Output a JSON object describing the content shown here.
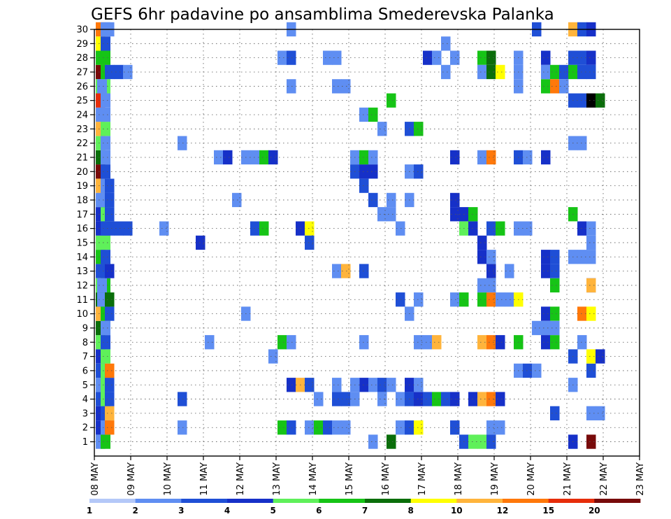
{
  "chart_data": {
    "type": "heatmap",
    "title": "GEFS 6hr padavine po ansamblima Smederevska Palanka",
    "xlabel": "",
    "ylabel": "",
    "x_tick_labels": [
      "08 MAY",
      "09 MAY",
      "10 MAY",
      "11 MAY",
      "12 MAY",
      "13 MAY",
      "14 MAY",
      "15 MAY",
      "16 MAY",
      "17 MAY",
      "18 MAY",
      "19 MAY",
      "20 MAY",
      "21 MAY",
      "22 MAY",
      "23 MAY"
    ],
    "y_tick_labels": [
      "1",
      "2",
      "3",
      "4",
      "5",
      "6",
      "7",
      "8",
      "9",
      "10",
      "11",
      "12",
      "13",
      "14",
      "15",
      "16",
      "17",
      "18",
      "19",
      "20",
      "21",
      "22",
      "23",
      "24",
      "25",
      "26",
      "27",
      "28",
      "29",
      "30"
    ],
    "xlim": [
      0,
      60
    ],
    "ylim": [
      0,
      30
    ],
    "x_unit": "6-hour steps from 08 MAY 00Z",
    "y_unit": "ensemble member",
    "grid": true,
    "legend_position": "bottom",
    "colorbar": {
      "tick_labels": [
        "1",
        "2",
        "3",
        "4",
        "5",
        "6",
        "7",
        "8",
        "10",
        "12",
        "15",
        "20"
      ],
      "colors": [
        "#b4c8f8",
        "#5f8ef2",
        "#1f4fd6",
        "#1630c8",
        "#5ff05a",
        "#16c416",
        "#0a6e0a",
        "#ffff00",
        "#ffb43c",
        "#ff780a",
        "#e62d0a",
        "#780a0a"
      ]
    },
    "cells": [
      [
        0,
        1,
        1
      ],
      [
        0,
        2,
        3
      ],
      [
        0,
        3,
        3
      ],
      [
        0,
        4,
        2
      ],
      [
        0,
        5,
        1
      ],
      [
        0,
        6,
        2
      ],
      [
        0,
        7,
        3
      ],
      [
        0,
        8,
        4
      ],
      [
        0,
        9,
        6
      ],
      [
        0,
        10,
        8
      ],
      [
        0,
        11,
        6
      ],
      [
        0,
        12,
        4
      ],
      [
        0,
        13,
        2
      ],
      [
        0,
        14,
        5
      ],
      [
        0,
        15,
        4
      ],
      [
        0,
        16,
        3
      ],
      [
        0,
        17,
        3
      ],
      [
        0,
        18,
        1
      ],
      [
        0,
        19,
        8
      ],
      [
        0,
        20,
        11
      ],
      [
        0,
        21,
        6
      ],
      [
        0,
        22,
        4
      ],
      [
        0,
        23,
        8
      ],
      [
        0,
        24,
        1
      ],
      [
        0,
        25,
        10
      ],
      [
        0,
        26,
        4
      ],
      [
        0,
        27,
        11
      ],
      [
        0,
        28,
        5
      ],
      [
        0,
        29,
        7
      ],
      [
        0,
        30,
        9
      ],
      [
        -1,
        5,
        4
      ],
      [
        -1,
        6,
        4
      ],
      [
        -1,
        7,
        4
      ],
      [
        -1,
        8,
        2
      ],
      [
        -1,
        9,
        1
      ],
      [
        -1,
        10,
        5
      ],
      [
        -1,
        11,
        5
      ],
      [
        -1,
        12,
        5
      ],
      [
        -1,
        13,
        2
      ],
      [
        -1,
        14,
        2
      ],
      [
        -1,
        15,
        4
      ],
      [
        -1,
        16,
        2
      ],
      [
        -1,
        17,
        4
      ],
      [
        -1,
        18,
        2
      ],
      [
        -1,
        19,
        1
      ],
      [
        -1,
        20,
        2
      ],
      [
        -1,
        21,
        1
      ],
      [
        -1,
        22,
        1
      ],
      [
        -1,
        23,
        4
      ],
      [
        -1,
        24,
        1
      ],
      [
        -1,
        25,
        1
      ],
      [
        -1,
        26,
        4
      ],
      [
        -1,
        27,
        5
      ],
      [
        -1,
        28,
        5
      ],
      [
        -1,
        29,
        2
      ],
      [
        -1,
        30,
        1
      ],
      [
        -1,
        1,
        5
      ],
      [
        -1,
        2,
        1
      ],
      [
        -1,
        3,
        2
      ],
      [
        -1,
        4,
        4
      ],
      [
        -2,
        18,
        1
      ],
      [
        -2,
        26,
        1
      ],
      [
        -2,
        11,
        1
      ],
      [
        -2,
        12,
        1
      ],
      [
        1,
        2,
        9
      ],
      [
        1,
        3,
        8
      ],
      [
        1,
        4,
        2
      ],
      [
        1,
        5,
        2
      ],
      [
        1,
        6,
        9
      ],
      [
        1,
        10,
        2
      ],
      [
        1,
        11,
        6
      ],
      [
        1,
        13,
        3
      ],
      [
        1,
        16,
        2
      ],
      [
        1,
        17,
        2
      ],
      [
        1,
        18,
        2
      ],
      [
        1,
        19,
        2
      ],
      [
        1,
        27,
        2
      ],
      [
        1,
        30,
        1
      ],
      [
        2,
        16,
        2
      ],
      [
        2,
        27,
        2
      ],
      [
        3,
        16,
        2
      ],
      [
        3,
        27,
        1
      ],
      [
        7,
        16,
        1
      ],
      [
        9,
        4,
        2
      ],
      [
        9,
        2,
        1
      ],
      [
        9,
        22,
        1
      ],
      [
        11,
        15,
        3
      ],
      [
        12,
        8,
        1
      ],
      [
        13,
        21,
        1
      ],
      [
        14,
        21,
        3
      ],
      [
        15,
        18,
        1
      ],
      [
        16,
        21,
        1
      ],
      [
        16,
        10,
        1
      ],
      [
        17,
        21,
        1
      ],
      [
        17,
        16,
        2
      ],
      [
        18,
        16,
        5
      ],
      [
        18,
        21,
        5
      ],
      [
        19,
        7,
        1
      ],
      [
        19,
        21,
        3
      ],
      [
        20,
        8,
        5
      ],
      [
        20,
        2,
        5
      ],
      [
        20,
        28,
        1
      ],
      [
        21,
        8,
        1
      ],
      [
        21,
        2,
        2
      ],
      [
        21,
        28,
        2
      ],
      [
        21,
        26,
        1
      ],
      [
        21,
        30,
        1
      ],
      [
        21,
        5,
        3
      ],
      [
        22,
        5,
        8
      ],
      [
        22,
        16,
        3
      ],
      [
        23,
        16,
        7
      ],
      [
        23,
        5,
        2
      ],
      [
        23,
        2,
        1
      ],
      [
        23,
        15,
        2
      ],
      [
        24,
        2,
        5
      ],
      [
        24,
        4,
        1
      ],
      [
        25,
        2,
        2
      ],
      [
        25,
        28,
        1
      ],
      [
        26,
        2,
        1
      ],
      [
        26,
        4,
        2
      ],
      [
        26,
        5,
        1
      ],
      [
        26,
        26,
        1
      ],
      [
        26,
        28,
        1
      ],
      [
        27,
        4,
        2
      ],
      [
        27,
        2,
        1
      ],
      [
        27,
        26,
        1
      ],
      [
        26,
        13,
        1
      ],
      [
        27,
        13,
        8
      ],
      [
        28,
        20,
        2
      ],
      [
        28,
        21,
        1
      ],
      [
        29,
        20,
        3
      ],
      [
        29,
        21,
        5
      ],
      [
        29,
        19,
        2
      ],
      [
        29,
        13,
        2
      ],
      [
        29,
        24,
        1
      ],
      [
        30,
        20,
        3
      ],
      [
        30,
        21,
        1
      ],
      [
        30,
        18,
        2
      ],
      [
        30,
        24,
        5
      ],
      [
        30,
        1,
        1
      ],
      [
        29,
        5,
        3
      ],
      [
        30,
        5,
        1
      ],
      [
        29,
        8,
        1
      ],
      [
        28,
        4,
        1
      ],
      [
        28,
        5,
        1
      ],
      [
        31,
        17,
        1
      ],
      [
        31,
        23,
        1
      ],
      [
        31,
        4,
        1
      ],
      [
        31,
        5,
        2
      ],
      [
        32,
        18,
        1
      ],
      [
        32,
        1,
        6
      ],
      [
        32,
        25,
        5
      ],
      [
        32,
        17,
        1
      ],
      [
        32,
        5,
        1
      ],
      [
        33,
        11,
        2
      ],
      [
        33,
        4,
        1
      ],
      [
        33,
        2,
        1
      ],
      [
        33,
        16,
        1
      ],
      [
        34,
        4,
        2
      ],
      [
        34,
        23,
        2
      ],
      [
        34,
        20,
        1
      ],
      [
        34,
        10,
        1
      ],
      [
        34,
        2,
        2
      ],
      [
        34,
        5,
        3
      ],
      [
        34,
        18,
        1
      ],
      [
        35,
        4,
        3
      ],
      [
        35,
        2,
        7
      ],
      [
        35,
        23,
        5
      ],
      [
        35,
        5,
        1
      ],
      [
        35,
        8,
        1
      ],
      [
        35,
        20,
        2
      ],
      [
        35,
        11,
        1
      ],
      [
        36,
        4,
        2
      ],
      [
        36,
        8,
        1
      ],
      [
        36,
        0,
        5
      ],
      [
        36,
        28,
        3
      ],
      [
        37,
        8,
        8
      ],
      [
        37,
        4,
        5
      ],
      [
        37,
        28,
        1
      ],
      [
        37,
        0,
        1
      ],
      [
        38,
        4,
        2
      ],
      [
        38,
        0,
        5
      ],
      [
        38,
        29,
        1
      ],
      [
        38,
        27,
        1
      ],
      [
        39,
        4,
        3
      ],
      [
        39,
        0,
        3
      ],
      [
        39,
        2,
        2
      ],
      [
        39,
        28,
        1
      ],
      [
        39,
        21,
        3
      ],
      [
        39,
        18,
        3
      ],
      [
        39,
        17,
        3
      ],
      [
        39,
        11,
        1
      ],
      [
        40,
        11,
        5
      ],
      [
        40,
        17,
        3
      ],
      [
        40,
        16,
        4
      ],
      [
        40,
        1,
        2
      ],
      [
        40,
        0,
        1
      ],
      [
        41,
        4,
        3
      ],
      [
        41,
        1,
        4
      ],
      [
        41,
        17,
        5
      ],
      [
        41,
        16,
        3
      ],
      [
        42,
        1,
        4
      ],
      [
        42,
        4,
        8
      ],
      [
        42,
        8,
        8
      ],
      [
        42,
        11,
        5
      ],
      [
        42,
        14,
        3
      ],
      [
        42,
        15,
        3
      ],
      [
        42,
        12,
        1
      ],
      [
        42,
        21,
        1
      ],
      [
        42,
        28,
        5
      ],
      [
        42,
        27,
        1
      ],
      [
        43,
        4,
        9
      ],
      [
        43,
        11,
        9
      ],
      [
        43,
        13,
        3
      ],
      [
        43,
        14,
        1
      ],
      [
        43,
        12,
        1
      ],
      [
        43,
        2,
        1
      ],
      [
        43,
        8,
        9
      ],
      [
        43,
        21,
        9
      ],
      [
        43,
        16,
        2
      ],
      [
        43,
        27,
        6
      ],
      [
        43,
        28,
        6
      ],
      [
        43,
        1,
        2
      ],
      [
        44,
        4,
        3
      ],
      [
        44,
        8,
        3
      ],
      [
        44,
        11,
        1
      ],
      [
        44,
        16,
        5
      ],
      [
        44,
        27,
        7
      ],
      [
        44,
        2,
        1
      ],
      [
        45,
        11,
        1
      ],
      [
        45,
        13,
        1
      ],
      [
        46,
        11,
        7
      ],
      [
        46,
        6,
        1
      ],
      [
        46,
        8,
        5
      ],
      [
        46,
        27,
        1
      ],
      [
        46,
        28,
        1
      ],
      [
        46,
        26,
        1
      ],
      [
        46,
        21,
        2
      ],
      [
        46,
        16,
        1
      ],
      [
        47,
        6,
        2
      ],
      [
        47,
        16,
        1
      ],
      [
        47,
        21,
        1
      ],
      [
        48,
        6,
        1
      ],
      [
        48,
        9,
        1
      ],
      [
        48,
        30,
        2
      ],
      [
        49,
        9,
        1
      ],
      [
        49,
        10,
        3
      ],
      [
        49,
        14,
        3
      ],
      [
        49,
        13,
        3
      ],
      [
        49,
        21,
        3
      ],
      [
        49,
        26,
        5
      ],
      [
        49,
        28,
        3
      ],
      [
        49,
        27,
        1
      ],
      [
        49,
        8,
        3
      ],
      [
        50,
        12,
        5
      ],
      [
        50,
        13,
        2
      ],
      [
        50,
        14,
        2
      ],
      [
        50,
        26,
        9
      ],
      [
        50,
        27,
        5
      ],
      [
        50,
        10,
        5
      ],
      [
        50,
        8,
        5
      ],
      [
        50,
        3,
        2
      ],
      [
        50,
        9,
        1
      ],
      [
        51,
        26,
        1
      ],
      [
        51,
        27,
        2
      ],
      [
        52,
        1,
        3
      ],
      [
        52,
        17,
        5
      ],
      [
        52,
        28,
        2
      ],
      [
        52,
        27,
        5
      ],
      [
        52,
        25,
        2
      ],
      [
        52,
        22,
        1
      ],
      [
        52,
        30,
        8
      ],
      [
        52,
        5,
        1
      ],
      [
        52,
        14,
        1
      ],
      [
        52,
        7,
        2
      ],
      [
        53,
        14,
        1
      ],
      [
        53,
        16,
        3
      ],
      [
        53,
        25,
        2
      ],
      [
        53,
        22,
        1
      ],
      [
        53,
        28,
        2
      ],
      [
        53,
        27,
        2
      ],
      [
        53,
        10,
        9
      ],
      [
        53,
        8,
        1
      ],
      [
        53,
        30,
        2
      ],
      [
        54,
        3,
        1
      ],
      [
        54,
        6,
        2
      ],
      [
        54,
        7,
        7
      ],
      [
        54,
        10,
        7
      ],
      [
        54,
        12,
        3
      ],
      [
        54,
        14,
        1
      ],
      [
        54,
        15,
        1
      ],
      [
        54,
        16,
        1
      ],
      [
        54,
        28,
        3
      ],
      [
        54,
        27,
        2
      ],
      [
        54,
        25,
        12
      ],
      [
        54,
        30,
        3
      ],
      [
        54,
        12,
        8
      ],
      [
        54,
        1,
        11
      ],
      [
        55,
        7,
        3
      ],
      [
        55,
        25,
        6
      ],
      [
        55,
        3,
        1
      ]
    ]
  }
}
